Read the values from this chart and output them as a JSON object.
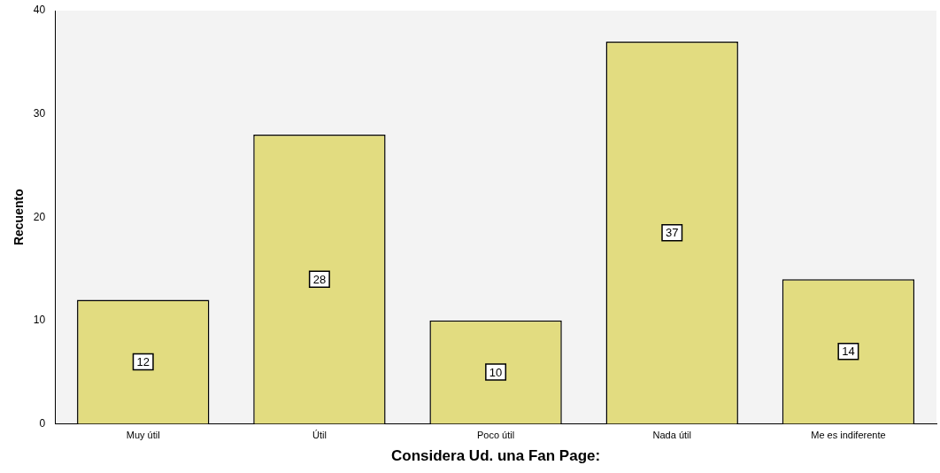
{
  "chart_data": {
    "type": "bar",
    "xlabel": "Considera Ud. una Fan Page:",
    "ylabel": "Recuento",
    "categories": [
      "Muy útil",
      "Útil",
      "Poco útil",
      "Nada útil",
      "Me es indiferente"
    ],
    "values": [
      12,
      28,
      10,
      37,
      14
    ],
    "color": "#e2dc80",
    "ylim": [
      0,
      40
    ],
    "yticks": [
      0,
      10,
      20,
      30,
      40
    ],
    "grid": false,
    "legend": false,
    "data_labels": true
  }
}
